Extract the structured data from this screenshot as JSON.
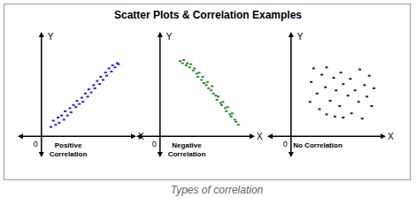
{
  "title": "Scatter Plots & Correlation Examples",
  "caption": "Types of correlation",
  "chart_data": [
    {
      "type": "scatter",
      "subtitle": "Positive Correlation",
      "x_label": "X",
      "y_label": "Y",
      "xlim": [
        -2,
        8
      ],
      "ylim": [
        -2,
        10
      ],
      "xticks": [
        0
      ],
      "grid": false,
      "color": "#2323e6",
      "marker": "square",
      "x": [
        0.8,
        1.0,
        1.2,
        1.4,
        1.5,
        1.7,
        1.9,
        2.0,
        2.2,
        2.4,
        2.5,
        2.7,
        2.9,
        3.0,
        3.2,
        3.4,
        3.5,
        3.7,
        3.9,
        4.0,
        4.2,
        4.4,
        4.5,
        4.7,
        4.9,
        5.0,
        5.2,
        5.4,
        5.5,
        5.7,
        5.9,
        6.0,
        6.2,
        6.4,
        6.5
      ],
      "values": [
        0.9,
        1.5,
        1.1,
        1.8,
        1.3,
        2.0,
        1.6,
        2.4,
        2.0,
        2.7,
        2.3,
        3.0,
        2.8,
        3.4,
        3.1,
        3.7,
        3.3,
        4.1,
        3.8,
        4.5,
        4.2,
        4.9,
        4.6,
        5.3,
        5.0,
        5.7,
        5.4,
        6.1,
        5.8,
        6.5,
        6.2,
        6.8,
        6.6,
        7.0,
        6.9
      ]
    },
    {
      "type": "scatter",
      "subtitle": "Negative Correlation",
      "x_label": "X",
      "y_label": "Y",
      "xlim": [
        -2,
        8
      ],
      "ylim": [
        -2,
        10
      ],
      "xticks": [
        0
      ],
      "grid": false,
      "color": "#2e8b2e",
      "marker": "square",
      "x": [
        1.7,
        1.9,
        2.0,
        2.2,
        2.3,
        2.5,
        2.6,
        2.8,
        2.9,
        3.1,
        3.2,
        3.3,
        3.5,
        3.6,
        3.7,
        3.9,
        4.0,
        4.1,
        4.3,
        4.4,
        4.5,
        4.7,
        4.8,
        4.9,
        5.1,
        5.2,
        5.3,
        5.5,
        5.6,
        5.7,
        5.9,
        6.0,
        6.1,
        6.3,
        6.4,
        6.6
      ],
      "values": [
        7.2,
        7.0,
        7.3,
        6.8,
        7.0,
        6.6,
        6.9,
        6.3,
        6.5,
        6.0,
        5.7,
        6.1,
        5.4,
        5.7,
        5.1,
        4.9,
        5.2,
        4.6,
        4.4,
        4.8,
        4.1,
        3.9,
        3.5,
        3.8,
        3.2,
        3.0,
        3.3,
        2.7,
        2.4,
        2.8,
        2.1,
        1.9,
        2.2,
        1.6,
        1.4,
        1.1
      ]
    },
    {
      "type": "scatter",
      "subtitle": "No Correlation",
      "x_label": "X",
      "y_label": "Y",
      "xlim": [
        -2,
        8
      ],
      "ylim": [
        -2,
        10
      ],
      "xticks": [
        0
      ],
      "grid": false,
      "color": "#222222",
      "marker": "square",
      "x": [
        1.9,
        3.0,
        5.8,
        4.2,
        2.6,
        6.6,
        3.6,
        5.0,
        1.7,
        4.4,
        6.2,
        2.9,
        3.8,
        5.4,
        7.0,
        2.2,
        4.8,
        6.4,
        1.6,
        3.3,
        5.7,
        4.1,
        2.4,
        6.8,
        3.0,
        5.1,
        4.4,
        6.0,
        3.7
      ],
      "values": [
        6.5,
        6.6,
        6.4,
        6.1,
        5.9,
        5.8,
        5.6,
        5.5,
        5.2,
        5.0,
        4.9,
        4.7,
        4.4,
        4.4,
        4.6,
        4.1,
        3.9,
        3.8,
        3.3,
        3.4,
        3.3,
        2.9,
        2.6,
        2.9,
        2.1,
        2.2,
        1.8,
        1.7,
        1.9
      ]
    }
  ]
}
